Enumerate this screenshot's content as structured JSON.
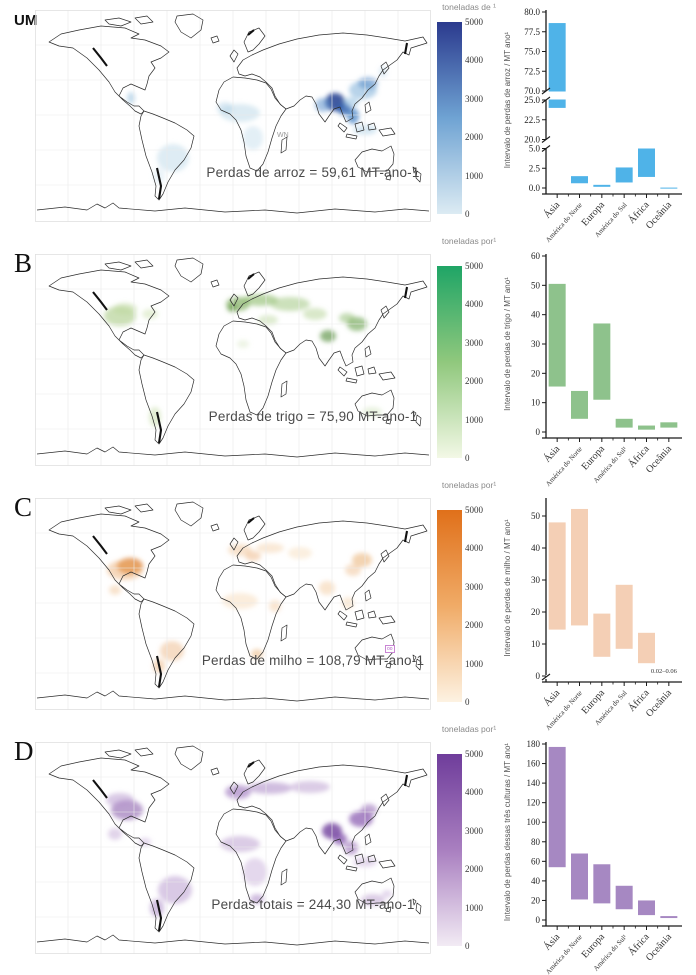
{
  "panels": [
    {
      "label": "UM",
      "caption": "Perdas de arroz = 59,61 MT-ano-1",
      "map_note": "WN",
      "colorbar": {
        "title": "toneladas de ¹",
        "ticks": [
          "5000",
          "4000",
          "3000",
          "2000",
          "1000",
          "0"
        ],
        "color_top": "#2b3a8e",
        "color_mid": "#6fa3d3",
        "color_low": "#dcebf3"
      },
      "chart_data": {
        "type": "range-bar",
        "ylabel": "Intervalo de perdas de arroz / MT ano¹",
        "bar_color": "#4fb3e8",
        "categories": [
          "Ásia",
          "América do Norte",
          "Europa",
          "América do Sul",
          "África",
          "Oceânia"
        ],
        "ranges": [
          [
            24.0,
            78.6
          ],
          [
            0.6,
            1.5
          ],
          [
            0.15,
            0.4
          ],
          [
            0.7,
            2.6
          ],
          [
            1.4,
            5.6
          ],
          [
            0.0,
            0.05
          ]
        ],
        "axis_segments": [
          {
            "min": 0,
            "max": 5,
            "ticks": [
              "0.0",
              "2.5",
              "5.0"
            ]
          },
          {
            "min": 20,
            "max": 25,
            "ticks": [
              "20.0",
              "22.5",
              "25.0"
            ]
          },
          {
            "min": 70,
            "max": 80,
            "ticks": [
              "70.0",
              "72.5",
              "75.0",
              "77.5",
              "80.0"
            ]
          }
        ]
      }
    },
    {
      "label": "B",
      "caption": "Perdas de trigo = 75,90 MT-ano-1",
      "colorbar": {
        "title": "toneladas por¹",
        "ticks": [
          "5000",
          "4000",
          "3000",
          "2000",
          "1000",
          "0"
        ],
        "color_top": "#1fa566",
        "color_mid": "#90c87d",
        "color_low": "#f3f8e6"
      },
      "chart_data": {
        "type": "range-bar",
        "ylabel": "Intervalo de perdas de trigo / MT ano¹",
        "bar_color": "#8ec28c",
        "categories": [
          "Ásia",
          "América do Norte",
          "Europa",
          "América do Sul¹",
          "África",
          "Oceânia"
        ],
        "ranges": [
          [
            15.5,
            50.5
          ],
          [
            4.5,
            14.0
          ],
          [
            11.0,
            37.0
          ],
          [
            1.5,
            4.5
          ],
          [
            0.8,
            2.2
          ],
          [
            1.5,
            3.3
          ]
        ],
        "axis_segments": [
          {
            "min": 0,
            "max": 60,
            "ticks": [
              "0",
              "10",
              "20",
              "30",
              "40",
              "50",
              "60"
            ]
          }
        ]
      }
    },
    {
      "label": "C",
      "caption": "Perdas de milho = 108,79 MT-ano-1",
      "map_marker": "oo",
      "colorbar": {
        "title": "toneladas por¹",
        "ticks": [
          "5000",
          "4000",
          "3000",
          "2000",
          "1000",
          "0"
        ],
        "color_top": "#e0701a",
        "color_mid": "#f0ab67",
        "color_low": "#fdf2e2"
      },
      "chart_data": {
        "type": "range-bar",
        "ylabel": "Intervalo de perdas de milho / MT ano¹",
        "bar_color": "#f4cfb5",
        "categories": [
          "Ásia",
          "América do Norte",
          "Europa",
          "América do Sul",
          "África",
          "Oceânia"
        ],
        "ranges": [
          [
            14.5,
            48.0
          ],
          [
            15.8,
            52.2
          ],
          [
            6.0,
            19.5
          ],
          [
            8.5,
            28.5
          ],
          [
            4.0,
            13.5
          ],
          null
        ],
        "note": {
          "category_index": 5,
          "text": "0.02–0.06"
        },
        "corner_break": true,
        "axis_segments": [
          {
            "min": 0,
            "max": 55,
            "ticks": [
              "0",
              "10",
              "20",
              "30",
              "40",
              "50"
            ]
          }
        ]
      }
    },
    {
      "label": "D",
      "caption": "Perdas totais = 244,30 MT-ano-1",
      "colorbar": {
        "title": "toneladas por¹",
        "ticks": [
          "5000",
          "4000",
          "3000",
          "2000",
          "1000",
          "0"
        ],
        "color_top": "#6f3d9b",
        "color_mid": "#a97fc0",
        "color_low": "#f2ebf4"
      },
      "chart_data": {
        "type": "range-bar",
        "ylabel": "Intervalo de perdas dessas três culturas / MT ano¹",
        "bar_color": "#a688c2",
        "categories": [
          "Ásia",
          "América do Norte",
          "Europa",
          "América do Sul¹",
          "África",
          "Oceânia"
        ],
        "ranges": [
          [
            54,
            177
          ],
          [
            21,
            68
          ],
          [
            17,
            57
          ],
          [
            11,
            35
          ],
          [
            5,
            20
          ],
          [
            2,
            4
          ]
        ],
        "axis_segments": [
          {
            "min": 0,
            "max": 180,
            "ticks": [
              "0",
              "20",
              "40",
              "60",
              "80",
              "100",
              "120",
              "140",
              "160",
              "180"
            ]
          }
        ]
      }
    }
  ]
}
